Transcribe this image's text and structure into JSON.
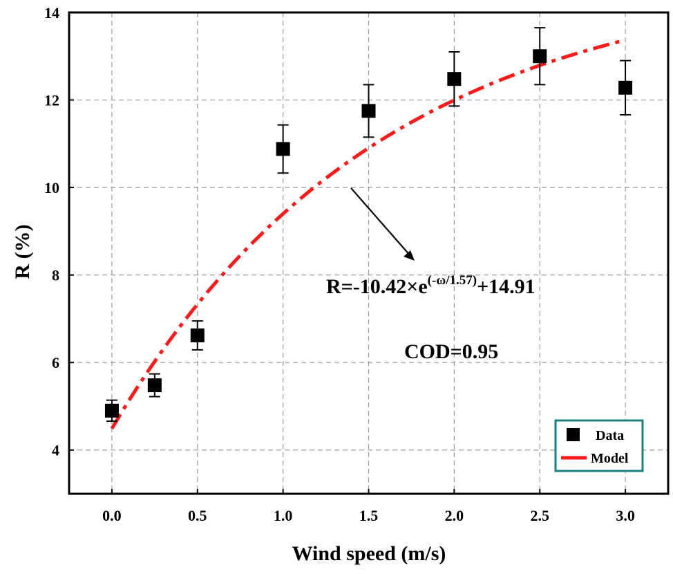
{
  "chart_data": {
    "type": "scatter",
    "title": "",
    "xlabel": "Wind speed (m/s)",
    "ylabel": "R (%)",
    "xlim": [
      -0.25,
      3.25
    ],
    "ylim": [
      3,
      14
    ],
    "xticks": [
      0.0,
      0.5,
      1.0,
      1.5,
      2.0,
      2.5,
      3.0
    ],
    "xtick_labels": [
      "0.0",
      "0.5",
      "1.0",
      "1.5",
      "2.0",
      "2.5",
      "3.0"
    ],
    "yticks": [
      4,
      6,
      8,
      10,
      12,
      14
    ],
    "ytick_labels": [
      "4",
      "6",
      "8",
      "10",
      "12",
      "14"
    ],
    "grid": true,
    "series": [
      {
        "name": "Data",
        "kind": "scatter-errorbar",
        "x": [
          0,
          0.25,
          0.5,
          1.0,
          1.5,
          2.0,
          2.5,
          3.0
        ],
        "y": [
          4.9,
          5.48,
          6.62,
          10.88,
          11.75,
          12.48,
          13.0,
          12.28
        ],
        "yerr": [
          0.24,
          0.26,
          0.33,
          0.55,
          0.6,
          0.62,
          0.65,
          0.62
        ],
        "color": "#000000"
      },
      {
        "name": "Model",
        "kind": "line",
        "style": "dash-dot",
        "color": "#ff1a1a",
        "equation": {
          "a": -10.42,
          "tau": 1.57,
          "c": 14.91
        },
        "x_range": [
          0,
          3.0
        ]
      }
    ],
    "annotations": {
      "equation_main": "R=-10.42×e",
      "equation_sup": "(-ω/1.57)",
      "equation_tail": "+14.91",
      "cod": "COD=0.95"
    },
    "legend": {
      "position": "bottom-right",
      "border_color": "#1e7f7f",
      "entries": [
        "Data",
        "Model"
      ]
    }
  }
}
